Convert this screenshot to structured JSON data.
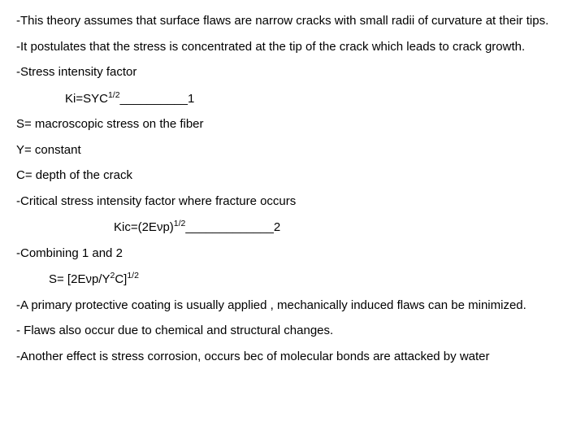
{
  "p1": "-This theory assumes that surface flaws are narrow cracks with small radii of curvature at their tips.",
  "p2": "-It postulates that the stress is concentrated at the tip of the crack which leads to crack growth.",
  "p3": "-Stress intensity factor",
  "eq1_a": "Ki=SYC",
  "eq1_sup": "1/2",
  "eq1_ref": "1",
  "p4": "S= macroscopic stress on the fiber",
  "p5": "Y= constant",
  "p6": "C= depth of the crack",
  "p7": "-Critical stress intensity factor where fracture occurs",
  "eq2_a": "Kic=(2E",
  "eq2_b": "p)",
  "eq2_sup": "1/2",
  "eq2_ref": "2",
  "nu": "ν",
  "p8": "-Combining 1 and 2",
  "eq3_a": "S= [2E",
  "eq3_b": "p/Y",
  "eq3_sup2": "2",
  "eq3_c": "C]",
  "eq3_sup": "1/2",
  "p9": "-A primary protective coating is usually applied , mechanically induced flaws can be minimized.",
  "p10": "- Flaws also occur due to chemical and structural changes.",
  "p11": "-Another effect is stress corrosion, occurs bec of molecular bonds are attacked by water",
  "line1": "__________",
  "line2": "_____________"
}
